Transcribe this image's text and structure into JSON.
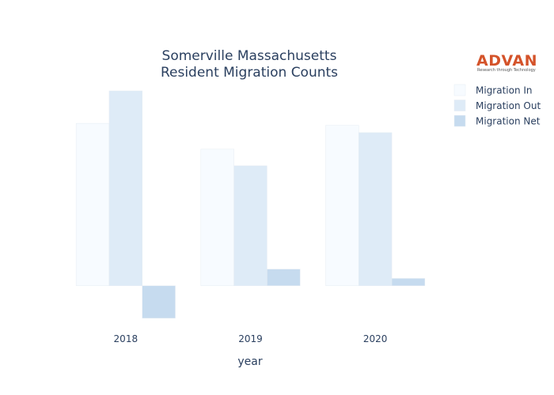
{
  "chart_data": {
    "type": "bar",
    "title": [
      "Somerville Massachusetts",
      "Resident Migration Counts"
    ],
    "xlabel": "year",
    "ylabel": "",
    "categories": [
      "2018",
      "2019",
      "2020"
    ],
    "series": [
      {
        "name": "Migration In",
        "color": "#f7fbff",
        "values": [
          2450,
          2060,
          2420
        ]
      },
      {
        "name": "Migration Out",
        "color": "#deebf7",
        "values": [
          2940,
          1810,
          2310
        ]
      },
      {
        "name": "Migration Net",
        "color": "#c6dbef",
        "values": [
          -490,
          250,
          110
        ]
      }
    ],
    "ylim": [
      -600,
      3000
    ],
    "grid": false,
    "legend": "top-right"
  },
  "logo": {
    "text": "ADVAN",
    "tagline": "Research through Technology",
    "color": "#d4532a"
  }
}
